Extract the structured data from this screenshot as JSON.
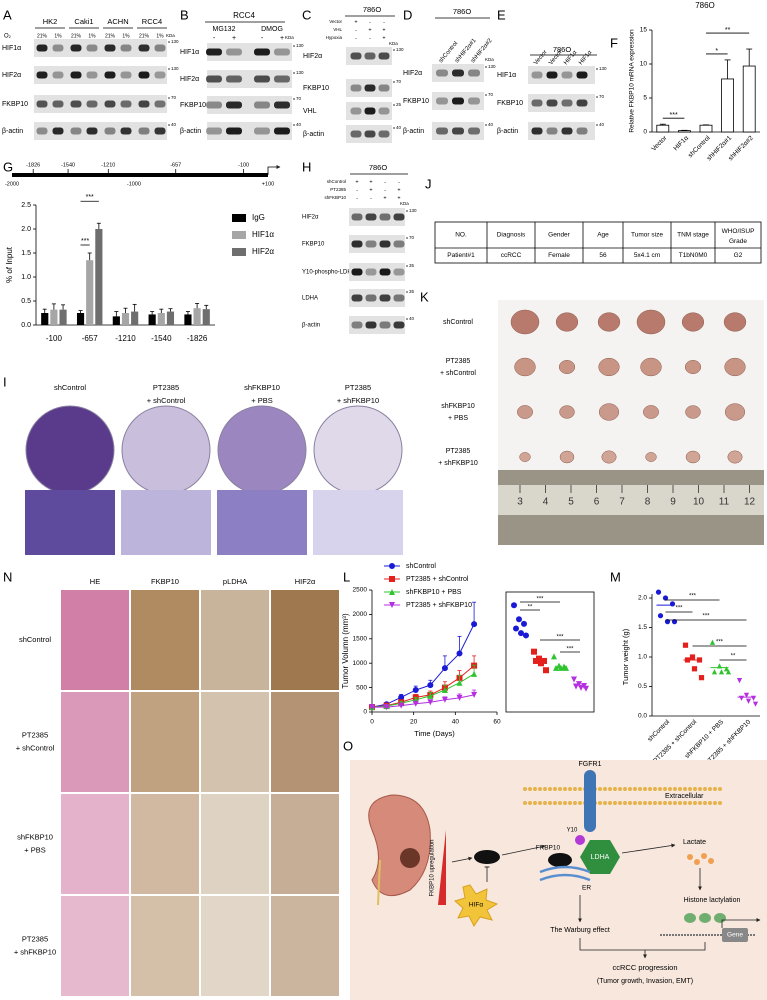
{
  "panels": {
    "A": {
      "label": "A",
      "o2": "O₂",
      "cells": [
        "HK2",
        "Caki1",
        "ACHN",
        "RCC4"
      ],
      "conditions": [
        "21%",
        "1%"
      ],
      "kda": "KDa",
      "rows": [
        "HIF1α",
        "HIF2α",
        "FKBP10",
        "β-actin"
      ],
      "markers": [
        "130",
        "130",
        "70",
        "40"
      ]
    },
    "B": {
      "label": "B",
      "title": "RCC4",
      "groups": [
        "MG132",
        "DMOG"
      ],
      "signs": [
        "-",
        "+"
      ],
      "kda": "KDa",
      "rows": [
        "HIF1α",
        "HIF2α",
        "FKBP10",
        "β-actin"
      ],
      "markers": [
        "130",
        "130",
        "70",
        "40"
      ]
    },
    "C": {
      "label": "C",
      "title": "786O",
      "conditions": [
        {
          "name": "Vector",
          "signs": [
            "+",
            "-",
            "-"
          ]
        },
        {
          "name": "VHL",
          "signs": [
            "-",
            "+",
            "+"
          ]
        },
        {
          "name": "Hypoxia",
          "signs": [
            "-",
            "-",
            "+"
          ]
        }
      ],
      "kda": "KDa",
      "rows": [
        "HIF2α",
        "FKBP10",
        "VHL",
        "β-actin"
      ],
      "markers": [
        "130",
        "70",
        "25",
        "40"
      ]
    },
    "D": {
      "label": "D",
      "title": "786O",
      "lanes": [
        "shControl",
        "shHIF2α#1",
        "shHIF2α#2"
      ],
      "kda": "KDa",
      "rows": [
        "HIF2α",
        "FKBP10",
        "β-actin"
      ],
      "markers": [
        "130",
        "70",
        "40"
      ]
    },
    "E": {
      "label": "E",
      "title": "786O",
      "lanes": [
        "Vector",
        "Vector",
        "HIF1α",
        "HIF1α"
      ],
      "rows": [
        "HIF1α",
        "FKBP10",
        "β-actin"
      ],
      "markers": [
        "130",
        "70",
        "40"
      ]
    },
    "F": {
      "label": "F",
      "chart": {
        "type": "bar",
        "title": "786O",
        "categories": [
          "Vector",
          "HIF1α",
          "shControl",
          "shHIF2α#1",
          "shHIF2α#2"
        ],
        "values": [
          1,
          0.2,
          1,
          7.8,
          9.7
        ],
        "errors": [
          0.15,
          0.05,
          0.05,
          2.8,
          2.5
        ],
        "ylabel": "Relative FKBP10 mRNA expression",
        "ylim": [
          0,
          15
        ],
        "yticks": [
          0,
          5,
          10,
          15
        ],
        "significance": [
          "***",
          "*",
          "**"
        ]
      }
    },
    "G": {
      "label": "G",
      "promoter": {
        "sites": [
          "-1826",
          "-1540",
          "-1210",
          "-657",
          "-100"
        ],
        "scale": [
          "-2000",
          "-1000",
          "+100"
        ]
      },
      "chart": {
        "type": "bar",
        "categories": [
          "-100",
          "-657",
          "-1210",
          "-1540",
          "-1826"
        ],
        "series": [
          {
            "name": "IgG",
            "color": "#000000",
            "values": [
              0.25,
              0.25,
              0.18,
              0.22,
              0.22
            ],
            "errors": [
              0.08,
              0.05,
              0.1,
              0.06,
              0.06
            ]
          },
          {
            "name": "HIF1α",
            "color": "#a6a6a6",
            "values": [
              0.32,
              1.35,
              0.25,
              0.25,
              0.35
            ],
            "errors": [
              0.12,
              0.15,
              0.1,
              0.08,
              0.1
            ]
          },
          {
            "name": "HIF2α",
            "color": "#6e6e6e",
            "values": [
              0.32,
              2.0,
              0.28,
              0.28,
              0.33
            ],
            "errors": [
              0.1,
              0.12,
              0.15,
              0.06,
              0.08
            ]
          }
        ],
        "ylabel": "% of Input",
        "ylim": [
          0,
          2.5
        ],
        "yticks": [
          {
            "value": 0,
            "label": "0.0"
          },
          0.5,
          {
            "value": 1,
            "label": "1.0"
          },
          1.5,
          {
            "value": 2,
            "label": "2.0"
          },
          2.5
        ],
        "significance": [
          "***",
          "***"
        ]
      }
    },
    "H": {
      "label": "H",
      "title": "786O",
      "conditions": [
        {
          "name": "shControl",
          "signs": [
            "+",
            "+",
            "-",
            "-"
          ]
        },
        {
          "name": "PT2385",
          "signs": [
            "-",
            "+",
            "-",
            "+"
          ]
        },
        {
          "name": "shFKBP10",
          "signs": [
            "-",
            "-",
            "+",
            "+"
          ]
        }
      ],
      "kda": "KDa",
      "rows": [
        "HIF2α",
        "FKBP10",
        "Y10-phospho-LDHA",
        "LDHA",
        "β-actin"
      ],
      "markers": [
        "130",
        "70",
        "35",
        "35",
        "40"
      ]
    },
    "J": {
      "label": "J",
      "table": {
        "headers": [
          "NO.",
          "Diagnosis",
          "Gender",
          "Age",
          "Tumor size",
          "TNM stage",
          "WHO/ISUP Grade"
        ],
        "rows": [
          [
            "Patient#1",
            "ccRCC",
            "Female",
            "56",
            "5x4.1 cm",
            "T1bN0M0",
            "G2"
          ]
        ]
      }
    },
    "K": {
      "label": "K",
      "groups": [
        [
          "shControl"
        ],
        [
          "PT2385",
          "+ shControl"
        ],
        [
          "shFKBP10",
          "+ PBS"
        ],
        [
          "PT2385",
          "+ shFKBP10"
        ]
      ],
      "ruler": [
        "3",
        "4",
        "5",
        "6",
        "7",
        "8",
        "9",
        "10",
        "11",
        "12"
      ]
    },
    "I": {
      "label": "I",
      "groups": [
        [
          "shControl"
        ],
        [
          "PT2385",
          "+ shControl"
        ],
        [
          "shFKBP10",
          "+ PBS"
        ],
        [
          "PT2385",
          "+ shFKBP10"
        ]
      ]
    },
    "N": {
      "label": "N",
      "columns": [
        "HE",
        "FKBP10",
        "pLDHA",
        "HIF2α"
      ],
      "rows": [
        [
          "shControl"
        ],
        [
          "PT2385",
          "+ shControl"
        ],
        [
          "shFKBP10",
          "+ PBS"
        ],
        [
          "PT2385",
          "+ shFKBP10"
        ]
      ]
    },
    "L": {
      "label": "L",
      "chart": {
        "type": "line",
        "x": [
          0,
          7,
          14,
          21,
          28,
          35,
          42,
          49
        ],
        "series": [
          {
            "name": "shControl",
            "color": "#1a1ad6",
            "values": [
              100,
              160,
              300,
              450,
              550,
              900,
              1200,
              1800
            ],
            "errors": [
              20,
              30,
              60,
              80,
              100,
              250,
              350,
              450
            ]
          },
          {
            "name": "PT2385 + shControl",
            "color": "#e3201c",
            "values": [
              100,
              130,
              200,
              300,
              350,
              500,
              700,
              950
            ],
            "errors": [
              20,
              25,
              40,
              60,
              80,
              120,
              150,
              200
            ]
          },
          {
            "name": "shFKBP10 + PBS",
            "color": "#2fc42f",
            "values": [
              100,
              120,
              180,
              250,
              330,
              450,
              600,
              780
            ],
            "errors": [
              20,
              25,
              40,
              50,
              70,
              100,
              150,
              180
            ]
          },
          {
            "name": "PT2385 + shFKBP10",
            "color": "#b42fe0",
            "values": [
              100,
              100,
              130,
              170,
              200,
              250,
              290,
              350
            ],
            "errors": [
              15,
              20,
              30,
              40,
              50,
              60,
              80,
              100
            ]
          }
        ],
        "xlabel": "Time (Days)",
        "ylabel": "Tumor Volumn (mm³)",
        "xlim": [
          0,
          60
        ],
        "xticks": [
          0,
          20,
          40,
          60
        ],
        "ylim": [
          0,
          2500
        ],
        "yticks": [
          0,
          500,
          1000,
          1500,
          2000,
          2500
        ],
        "inset": {
          "points": [
            [
              2300,
              2000,
              1900,
              1800,
              1700,
              1650
            ],
            [
              1300,
              1150,
              1100,
              1100,
              1050,
              900
            ],
            [
              1200,
              1000,
              980,
              950,
              950,
              950
            ],
            [
              700,
              600,
              560,
              550,
              520,
              500
            ]
          ],
          "significance": [
            "**",
            "***",
            "***",
            "***"
          ]
        }
      }
    },
    "M": {
      "label": "M",
      "chart": {
        "type": "scatter",
        "categories": [
          "shControl",
          "PT2385 + shControl",
          "shFKBP10 + PBS",
          "PT2385 + shFKBP10"
        ],
        "colors": [
          "#1a1ad6",
          "#e3201c",
          "#2fc42f",
          "#b42fe0"
        ],
        "points": [
          [
            2.1,
            2.0,
            1.9,
            1.7,
            1.6,
            1.6
          ],
          [
            1.2,
            1.0,
            0.95,
            0.95,
            0.8,
            0.65
          ],
          [
            1.25,
            0.85,
            0.8,
            0.75,
            0.75,
            0.75
          ],
          [
            0.6,
            0.35,
            0.3,
            0.3,
            0.25,
            0.2
          ]
        ],
        "means": [
          1.88,
          0.95,
          0.82,
          0.32
        ],
        "ylabel": "Tumor weight (g)",
        "ylim": [
          0,
          2.0
        ],
        "yticks": [
          {
            "value": 0,
            "label": "0.0"
          },
          0.5,
          {
            "value": 1,
            "label": "1.0"
          },
          1.5,
          {
            "value": 2,
            "label": "2.0"
          }
        ],
        "significance": [
          "***",
          "***",
          "***",
          "***",
          "**"
        ]
      }
    },
    "O": {
      "label": "O",
      "texts": {
        "fgfr1": "FGFR1",
        "extracellular": "Extracellular",
        "y10": "Y10",
        "ldha": "LDHA",
        "fkbp10": "FKBP10",
        "er": "ER",
        "lactate": "Lactate",
        "histone": "Histone lactylation",
        "gene": "Gene",
        "upregulation": "FKBP10 upregulation",
        "hif": "HIFα",
        "warburg": "The Warburg effect",
        "progression": "ccRCC progression",
        "outcomes": "(Tumor growth, Invasion, EMT)"
      }
    }
  }
}
